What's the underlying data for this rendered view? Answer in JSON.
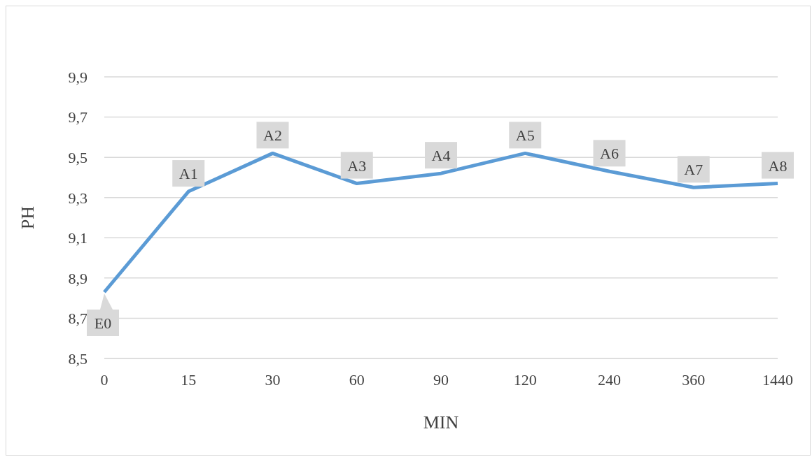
{
  "chart_data": {
    "type": "line",
    "xlabel": "MIN",
    "ylabel": "PH",
    "categories": [
      "0",
      "15",
      "30",
      "60",
      "90",
      "120",
      "240",
      "360",
      "1440"
    ],
    "series": [
      {
        "color": "#5b9bd5",
        "values": [
          8.83,
          9.33,
          9.52,
          9.37,
          9.42,
          9.52,
          9.43,
          9.35,
          9.37
        ],
        "value_labels": [
          "E0",
          "A1",
          "A2",
          "A3",
          "A4",
          "A5",
          "A6",
          "A7",
          "A8"
        ]
      }
    ],
    "ylim": [
      8.5,
      9.9
    ],
    "yticks": [
      {
        "value": 8.5,
        "label": "8,5"
      },
      {
        "value": 8.7,
        "label": "8,7"
      },
      {
        "value": 8.9,
        "label": "8,9"
      },
      {
        "value": 9.1,
        "label": "9,1"
      },
      {
        "value": 9.3,
        "label": "9,3"
      },
      {
        "value": 9.5,
        "label": "9,5"
      },
      {
        "value": 9.7,
        "label": "9,7"
      },
      {
        "value": 9.9,
        "label": "9,9"
      }
    ],
    "grid": "y",
    "marker": "none",
    "legend": false
  }
}
